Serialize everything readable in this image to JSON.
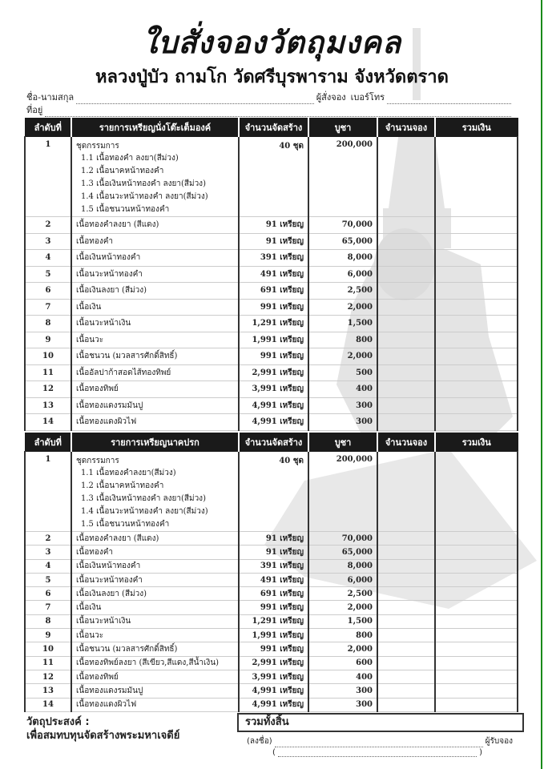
{
  "header": {
    "title": "ใบสั่งจองวัตถุมงคล",
    "subtitle": "หลวงปู่บัว ถามโก วัดศรีบุรพาราม  จังหวัดตราด"
  },
  "form": {
    "name_label": "ชื่อ-นามสกุล",
    "orderer_label": "ผู้สั่งจอง",
    "phone_label": "เบอร์โทร",
    "address_label": "ที่อยู่"
  },
  "tables": [
    {
      "headers": [
        "ลำดับที่",
        "รายการเหรียญนั่งโต๊ะเต็มองค์",
        "จำนวนจัดสร้าง",
        "บูชา",
        "จำนวนจอง",
        "รวมเงิน"
      ],
      "rows": [
        {
          "no": "1",
          "item": "ชุดกรรมการ",
          "sub": [
            "1.1  เนื้อทองคำ ลงยา(สีม่วง)",
            "1.2  เนื้อนาคหน้าทองคำ",
            "1.3  เนื้อเงินหน้าทองคำ ลงยา(สีม่วง)",
            "1.4  เนื้อนวะหน้าทองคำ ลงยา(สีม่วง)",
            "1.5  เนื้อชนวนหน้าทองคำ"
          ],
          "qty": "40  ชุด",
          "price": "200,000"
        },
        {
          "no": "2",
          "item": "เนื้อทองคำลงยา (สีแดง)",
          "qty": "91 เหรียญ",
          "price": "70,000"
        },
        {
          "no": "3",
          "item": "เนื้อทองคำ",
          "qty": "91 เหรียญ",
          "price": "65,000"
        },
        {
          "no": "4",
          "item": "เนื้อเงินหน้าทองคำ",
          "qty": "391 เหรียญ",
          "price": "8,000"
        },
        {
          "no": "5",
          "item": "เนื้อนวะหน้าทองคำ",
          "qty": "491 เหรียญ",
          "price": "6,000"
        },
        {
          "no": "6",
          "item": "เนื้อเงินลงยา  (สีม่วง)",
          "qty": "691 เหรียญ",
          "price": "2,500"
        },
        {
          "no": "7",
          "item": "เนื้อเงิน",
          "qty": "991 เหรียญ",
          "price": "2,000"
        },
        {
          "no": "8",
          "item": "เนื้อนวะหน้าเงิน",
          "qty": "1,291 เหรียญ",
          "price": "1,500"
        },
        {
          "no": "9",
          "item": "เนื้อนวะ",
          "qty": "1,991 เหรียญ",
          "price": "800"
        },
        {
          "no": "10",
          "item": "เนื้อชนวน (มวลสารศักดิ์สิทธิ์)",
          "qty": "991 เหรียญ",
          "price": "2,000"
        },
        {
          "no": "11",
          "item": "เนื้ออัลปาก้าสอดไส้ทองทิพย์",
          "qty": "2,991 เหรียญ",
          "price": "500"
        },
        {
          "no": "12",
          "item": "เนื้อทองทิพย์",
          "qty": "3,991 เหรียญ",
          "price": "400"
        },
        {
          "no": "13",
          "item": "เนื้อทองแดงรมมันปู",
          "qty": "4,991 เหรียญ",
          "price": "300"
        },
        {
          "no": "14",
          "item": "เนื้อทองแดงผิวไฟ",
          "qty": "4,991 เหรียญ",
          "price": "300"
        }
      ]
    },
    {
      "headers": [
        "ลำดับที่",
        "รายการเหรียญนาคปรก",
        "จำนวนจัดสร้าง",
        "บูชา",
        "จำนวนจอง",
        "รวมเงิน"
      ],
      "rows": [
        {
          "no": "1",
          "item": "ชุดกรรมการ",
          "sub": [
            "1.1  เนื้อทองคำลงยา(สีม่วง)",
            "1.2  เนื้อนาคหน้าทองคำ",
            "1.3  เนื้อเงินหน้าทองคำ ลงยา(สีม่วง)",
            "1.4  เนื้อนวะหน้าทองคำ ลงยา(สีม่วง)",
            "1.5  เนื้อชนวนหน้าทองคำ"
          ],
          "qty": "40  ชุด",
          "price": "200,000"
        },
        {
          "no": "2",
          "item": "เนื้อทองคำลงยา (สีแดง)",
          "qty": "91 เหรียญ",
          "price": "70,000"
        },
        {
          "no": "3",
          "item": "เนื้อทองคำ",
          "qty": "91 เหรียญ",
          "price": "65,000"
        },
        {
          "no": "4",
          "item": "เนื้อเงินหน้าทองคำ",
          "qty": "391 เหรียญ",
          "price": "8,000"
        },
        {
          "no": "5",
          "item": "เนื้อนวะหน้าทองคำ",
          "qty": "491 เหรียญ",
          "price": "6,000"
        },
        {
          "no": "6",
          "item": "เนื้อเงินลงยา  (สีม่วง)",
          "qty": "691 เหรียญ",
          "price": "2,500"
        },
        {
          "no": "7",
          "item": "เนื้อเงิน",
          "qty": "991 เหรียญ",
          "price": "2,000"
        },
        {
          "no": "8",
          "item": "เนื้อนวะหน้าเงิน",
          "qty": "1,291 เหรียญ",
          "price": "1,500"
        },
        {
          "no": "9",
          "item": "เนื้อนวะ",
          "qty": "1,991 เหรียญ",
          "price": "800"
        },
        {
          "no": "10",
          "item": "เนื้อชนวน (มวลสารศักดิ์สิทธิ์)",
          "qty": "991 เหรียญ",
          "price": "2,000"
        },
        {
          "no": "11",
          "item": "เนื้อทองทิพย์ลงยา (สีเขียว,สีแดง,สีน้ำเงิน)",
          "qty": "2,991 เหรียญ",
          "price": "600"
        },
        {
          "no": "12",
          "item": "เนื้อทองทิพย์",
          "qty": "3,991 เหรียญ",
          "price": "400"
        },
        {
          "no": "13",
          "item": "เนื้อทองแดงรมมันปู",
          "qty": "4,991 เหรียญ",
          "price": "300"
        },
        {
          "no": "14",
          "item": "เนื้อทองแดงผิวไฟ",
          "qty": "4,991 เหรียญ",
          "price": "300"
        }
      ]
    }
  ],
  "footer": {
    "purpose_label": "วัตถุประสงค์ :",
    "purpose_text": "เพื่อสมทบทุนจัดสร้างพระมหาเจดีย์",
    "grand_total_label": "รวมทั้งสิ้น",
    "sign_label": "(ลงชื่อ)",
    "receiver_label": "ผู้รับจอง",
    "paren_open": "(",
    "paren_close": ")"
  },
  "colors": {
    "header_bg": "#1a1a1a",
    "watermark": "#d8d8d8",
    "edge": "#1a8a1a"
  }
}
